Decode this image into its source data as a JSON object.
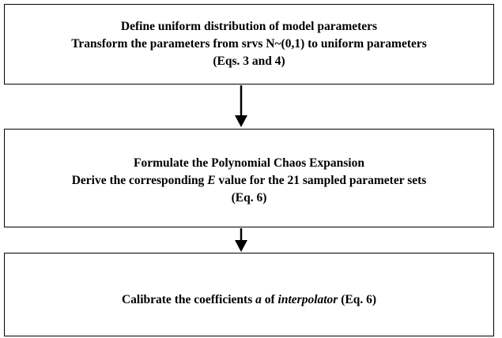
{
  "nodes": [
    {
      "lines": [
        [
          {
            "text": "Define uniform distribution of model parameters"
          }
        ],
        [
          {
            "text": "Transform the parameters from srvs N~(0,1) to uniform parameters"
          }
        ],
        [
          {
            "text": "(Eqs. 3 and 4)"
          }
        ]
      ]
    },
    {
      "lines": [
        [
          {
            "text": "Formulate the Polynomial Chaos Expansion"
          }
        ],
        [
          {
            "text": "Derive the corresponding "
          },
          {
            "text": "E",
            "italic": true
          },
          {
            "text": " value for the 21 sampled parameter sets"
          }
        ],
        [
          {
            "text": "(Eq. 6)"
          }
        ]
      ]
    },
    {
      "lines": [
        [
          {
            "text": "Calibrate the coefficients "
          },
          {
            "text": "a",
            "italic": true
          },
          {
            "text": " of "
          },
          {
            "text": "interpolator",
            "italic": true
          },
          {
            "text": " (Eq. 6)"
          }
        ]
      ]
    }
  ]
}
